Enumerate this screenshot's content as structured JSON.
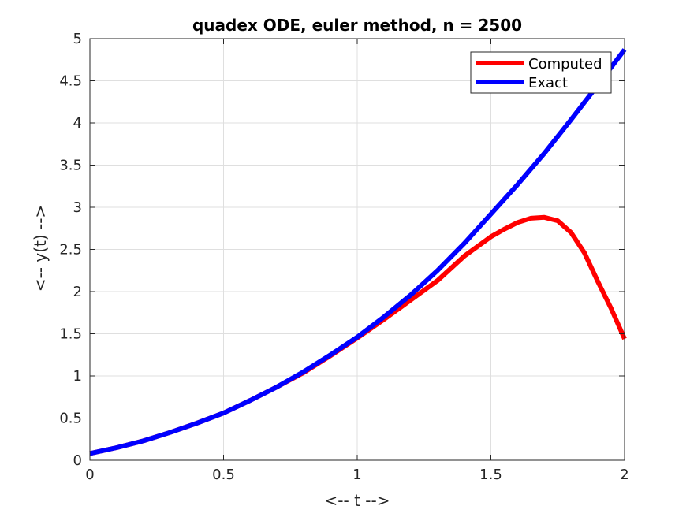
{
  "chart_data": {
    "type": "line",
    "title": "quadex ODE, euler method, n = 2500",
    "xlabel": "<-- t -->",
    "ylabel": "<-- y(t) -->",
    "xlim": [
      0,
      2
    ],
    "ylim": [
      0,
      5
    ],
    "xticks": [
      0,
      0.5,
      1,
      1.5,
      2
    ],
    "xtick_labels": [
      "0",
      "0.5",
      "1",
      "1.5",
      "2"
    ],
    "yticks": [
      0,
      0.5,
      1,
      1.5,
      2,
      2.5,
      3,
      3.5,
      4,
      4.5,
      5
    ],
    "ytick_labels": [
      "0",
      "0.5",
      "1",
      "1.5",
      "2",
      "2.5",
      "3",
      "3.5",
      "4",
      "4.5",
      "5"
    ],
    "grid": true,
    "legend_position": "top-right",
    "series": [
      {
        "name": "Computed",
        "color": "#ff0000",
        "x": [
          0,
          0.1,
          0.2,
          0.3,
          0.4,
          0.5,
          0.6,
          0.7,
          0.8,
          0.9,
          1.0,
          1.1,
          1.2,
          1.3,
          1.4,
          1.5,
          1.55,
          1.6,
          1.65,
          1.7,
          1.75,
          1.8,
          1.85,
          1.9,
          1.95,
          2.0
        ],
        "y": [
          0.08,
          0.15,
          0.23,
          0.33,
          0.44,
          0.56,
          0.71,
          0.87,
          1.04,
          1.24,
          1.45,
          1.67,
          1.9,
          2.13,
          2.42,
          2.65,
          2.74,
          2.82,
          2.87,
          2.88,
          2.84,
          2.7,
          2.46,
          2.12,
          1.8,
          1.44
        ]
      },
      {
        "name": "Exact",
        "color": "#0000ff",
        "x": [
          0,
          0.1,
          0.2,
          0.3,
          0.4,
          0.5,
          0.6,
          0.7,
          0.8,
          0.9,
          1.0,
          1.1,
          1.2,
          1.3,
          1.4,
          1.5,
          1.6,
          1.7,
          1.8,
          1.9,
          2.0
        ],
        "y": [
          0.08,
          0.15,
          0.23,
          0.33,
          0.44,
          0.56,
          0.71,
          0.87,
          1.05,
          1.25,
          1.46,
          1.7,
          1.96,
          2.25,
          2.57,
          2.92,
          3.27,
          3.64,
          4.04,
          4.45,
          4.87
        ]
      }
    ]
  }
}
